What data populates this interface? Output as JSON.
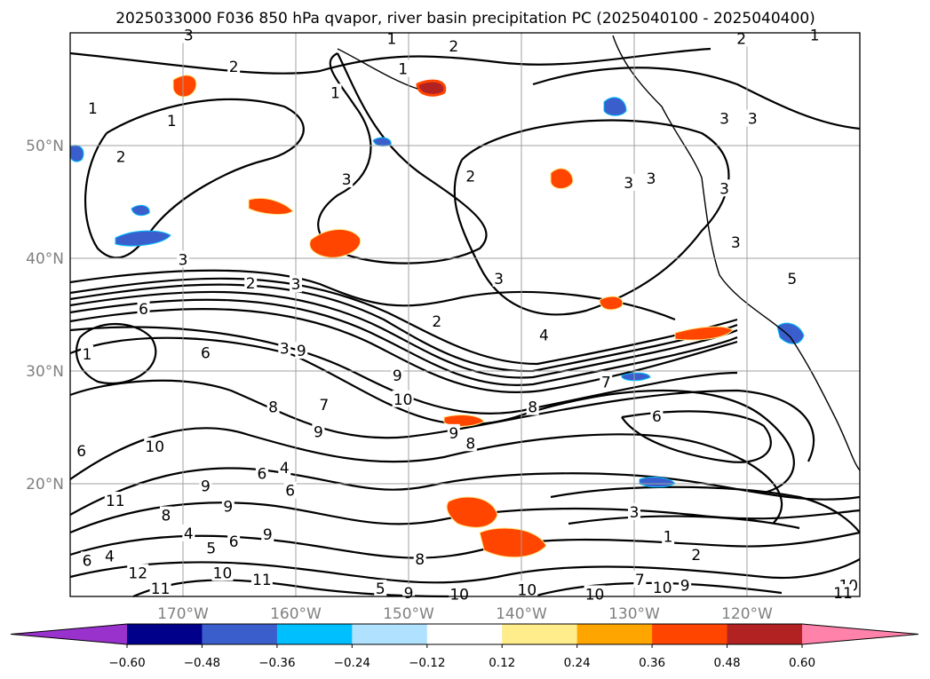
{
  "chart_data": {
    "type": "map",
    "title": "2025033000 F036 850 hPa qvapor, river basin precipitation PC (2025040100 - 2025040400)",
    "lon_range": [
      -180,
      -110
    ],
    "lat_range": [
      10,
      60
    ],
    "x_ticks": [
      {
        "value": -170,
        "label": "170°W"
      },
      {
        "value": -160,
        "label": "160°W"
      },
      {
        "value": -150,
        "label": "150°W"
      },
      {
        "value": -140,
        "label": "140°W"
      },
      {
        "value": -130,
        "label": "130°W"
      },
      {
        "value": -120,
        "label": "120°W"
      }
    ],
    "y_ticks": [
      {
        "value": 20,
        "label": "20°N"
      },
      {
        "value": 30,
        "label": "30°N"
      },
      {
        "value": 40,
        "label": "40°N"
      },
      {
        "value": 50,
        "label": "50°N"
      }
    ],
    "grid": true,
    "colorbar": {
      "orientation": "horizontal",
      "extend": "both",
      "boundaries": [
        -0.6,
        -0.48,
        -0.36,
        -0.24,
        -0.12,
        0.12,
        0.24,
        0.36,
        0.48,
        0.6
      ],
      "tick_labels": [
        "−0.60",
        "−0.48",
        "−0.36",
        "−0.24",
        "−0.12",
        "0.12",
        "0.24",
        "0.36",
        "0.48",
        "0.60"
      ],
      "colors": [
        "#9932cc",
        "#00008b",
        "#3a5fcd",
        "#00bfff",
        "#b0e2ff",
        "#ffffff",
        "#ffec8b",
        "#ffa500",
        "#ff4500",
        "#b22222",
        "#ff82ab"
      ]
    },
    "contour_labels": [
      {
        "lon": -169.5,
        "lat": 59.8,
        "text": "3"
      },
      {
        "lon": -151.5,
        "lat": 59.5,
        "text": "1"
      },
      {
        "lon": -146.0,
        "lat": 58.8,
        "text": "2"
      },
      {
        "lon": -120.5,
        "lat": 59.5,
        "text": "2"
      },
      {
        "lon": -114.0,
        "lat": 59.8,
        "text": "1"
      },
      {
        "lon": -150.5,
        "lat": 56.8,
        "text": "1"
      },
      {
        "lon": -178.0,
        "lat": 53.3,
        "text": "1"
      },
      {
        "lon": -165.5,
        "lat": 57.0,
        "text": "2"
      },
      {
        "lon": -171.0,
        "lat": 52.2,
        "text": "1"
      },
      {
        "lon": -175.5,
        "lat": 49.0,
        "text": "2"
      },
      {
        "lon": -156.5,
        "lat": 54.7,
        "text": "1"
      },
      {
        "lon": -122.0,
        "lat": 52.4,
        "text": "3"
      },
      {
        "lon": -119.5,
        "lat": 52.4,
        "text": "3"
      },
      {
        "lon": -144.5,
        "lat": 47.3,
        "text": "2"
      },
      {
        "lon": -155.5,
        "lat": 47.0,
        "text": "3"
      },
      {
        "lon": -130.5,
        "lat": 46.7,
        "text": "3"
      },
      {
        "lon": -128.5,
        "lat": 47.1,
        "text": "3"
      },
      {
        "lon": -122.0,
        "lat": 46.2,
        "text": "3"
      },
      {
        "lon": -121.0,
        "lat": 41.4,
        "text": "3"
      },
      {
        "lon": -170.0,
        "lat": 39.9,
        "text": "3"
      },
      {
        "lon": -164.0,
        "lat": 37.8,
        "text": "2"
      },
      {
        "lon": -160.0,
        "lat": 37.7,
        "text": "3"
      },
      {
        "lon": -142.0,
        "lat": 38.2,
        "text": "3"
      },
      {
        "lon": -116.0,
        "lat": 38.2,
        "text": "5"
      },
      {
        "lon": -173.5,
        "lat": 35.5,
        "text": "6"
      },
      {
        "lon": -147.5,
        "lat": 34.4,
        "text": "2"
      },
      {
        "lon": -138.0,
        "lat": 33.2,
        "text": "4"
      },
      {
        "lon": -178.5,
        "lat": 31.5,
        "text": "1"
      },
      {
        "lon": -168.0,
        "lat": 31.6,
        "text": "6"
      },
      {
        "lon": -161.0,
        "lat": 32.0,
        "text": "3"
      },
      {
        "lon": -159.5,
        "lat": 31.8,
        "text": "9"
      },
      {
        "lon": -151.0,
        "lat": 29.6,
        "text": "9"
      },
      {
        "lon": -150.5,
        "lat": 27.5,
        "text": "10"
      },
      {
        "lon": -132.5,
        "lat": 29.0,
        "text": "7"
      },
      {
        "lon": -139.0,
        "lat": 26.8,
        "text": "8"
      },
      {
        "lon": -128.0,
        "lat": 26.0,
        "text": "6"
      },
      {
        "lon": -162.0,
        "lat": 26.8,
        "text": "8"
      },
      {
        "lon": -157.5,
        "lat": 27.0,
        "text": "7"
      },
      {
        "lon": -172.5,
        "lat": 23.3,
        "text": "10"
      },
      {
        "lon": -179.0,
        "lat": 22.9,
        "text": "6"
      },
      {
        "lon": -158.0,
        "lat": 24.6,
        "text": "9"
      },
      {
        "lon": -146.0,
        "lat": 24.5,
        "text": "9"
      },
      {
        "lon": -144.5,
        "lat": 23.6,
        "text": "8"
      },
      {
        "lon": -176.0,
        "lat": 18.5,
        "text": "11"
      },
      {
        "lon": -168.0,
        "lat": 19.8,
        "text": "9"
      },
      {
        "lon": -163.0,
        "lat": 20.9,
        "text": "6"
      },
      {
        "lon": -161.0,
        "lat": 21.4,
        "text": "4"
      },
      {
        "lon": -160.5,
        "lat": 19.4,
        "text": "6"
      },
      {
        "lon": -166.0,
        "lat": 18.0,
        "text": "9"
      },
      {
        "lon": -171.5,
        "lat": 17.2,
        "text": "8"
      },
      {
        "lon": -169.5,
        "lat": 15.6,
        "text": "4"
      },
      {
        "lon": -167.5,
        "lat": 14.3,
        "text": "5"
      },
      {
        "lon": -165.5,
        "lat": 14.9,
        "text": "6"
      },
      {
        "lon": -162.5,
        "lat": 15.5,
        "text": "9"
      },
      {
        "lon": -178.5,
        "lat": 13.2,
        "text": "6"
      },
      {
        "lon": -176.5,
        "lat": 13.6,
        "text": "4"
      },
      {
        "lon": -174.0,
        "lat": 12.1,
        "text": "12"
      },
      {
        "lon": -166.5,
        "lat": 12.1,
        "text": "10"
      },
      {
        "lon": -163.0,
        "lat": 11.5,
        "text": "11"
      },
      {
        "lon": -172.0,
        "lat": 10.7,
        "text": "11"
      },
      {
        "lon": -149.0,
        "lat": 13.3,
        "text": "8"
      },
      {
        "lon": -152.5,
        "lat": 10.7,
        "text": "5"
      },
      {
        "lon": -150.0,
        "lat": 10.3,
        "text": "9"
      },
      {
        "lon": -145.5,
        "lat": 10.2,
        "text": "10"
      },
      {
        "lon": -139.5,
        "lat": 10.6,
        "text": "10"
      },
      {
        "lon": -133.5,
        "lat": 10.2,
        "text": "10"
      },
      {
        "lon": -130.0,
        "lat": 17.5,
        "text": "3"
      },
      {
        "lon": -127.0,
        "lat": 15.3,
        "text": "1"
      },
      {
        "lon": -124.5,
        "lat": 13.7,
        "text": "2"
      },
      {
        "lon": -129.5,
        "lat": 11.5,
        "text": "7"
      },
      {
        "lon": -127.5,
        "lat": 10.8,
        "text": "10"
      },
      {
        "lon": -125.5,
        "lat": 11.0,
        "text": "9"
      },
      {
        "lon": -111.0,
        "lat": 11.0,
        "text": "10"
      },
      {
        "lon": -111.5,
        "lat": 10.3,
        "text": "11"
      }
    ]
  }
}
